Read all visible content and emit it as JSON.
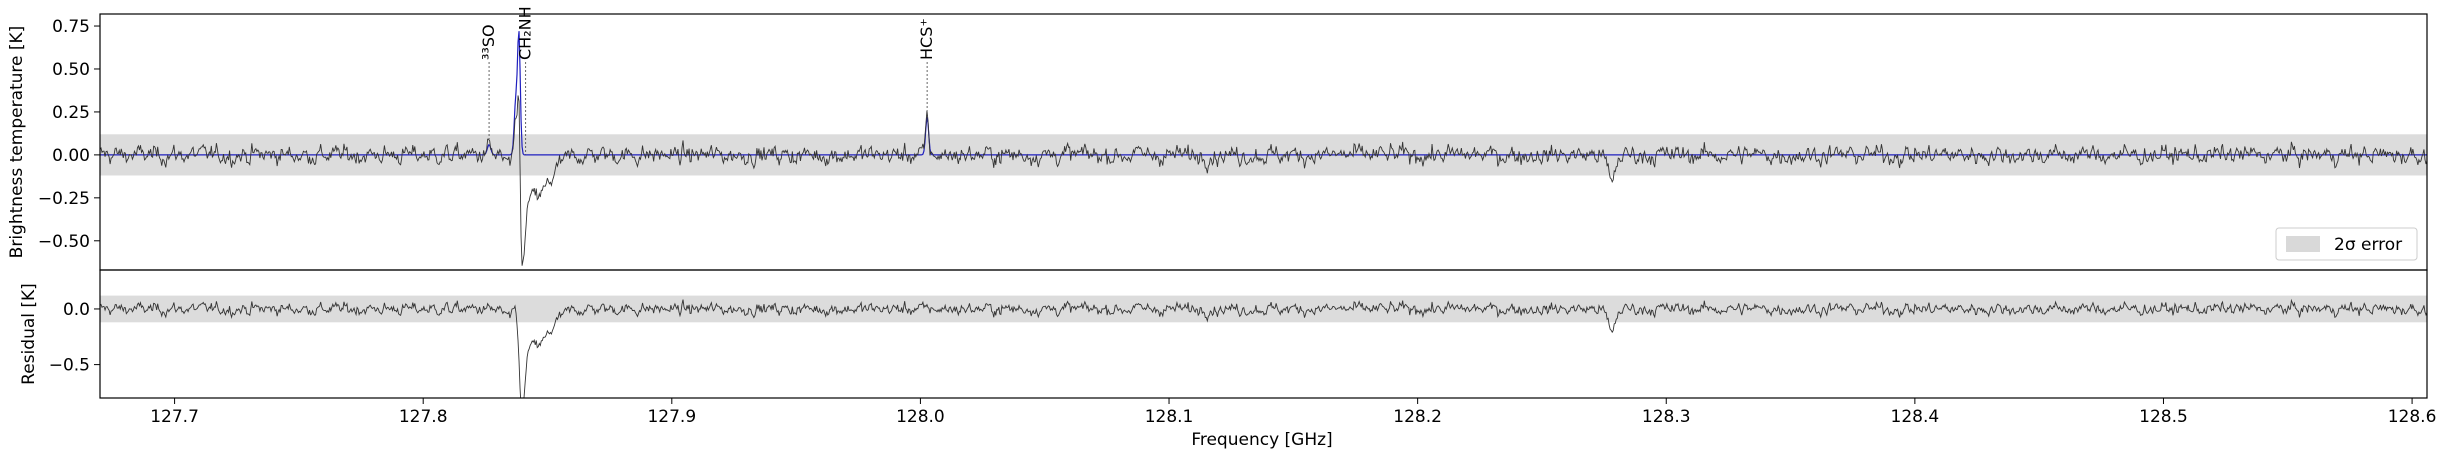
{
  "chart_data": [
    {
      "type": "line",
      "panel": "top",
      "ylabel": "Brightness temperature [K]",
      "xlim": [
        127.67,
        128.606
      ],
      "ylim": [
        -0.67,
        0.82
      ],
      "yticks": [
        -0.5,
        -0.25,
        0.0,
        0.25,
        0.5,
        0.75
      ],
      "ytick_labels": [
        "−0.50",
        "−0.25",
        "0.00",
        "0.25",
        "0.50",
        "0.75"
      ],
      "error_band": [
        -0.12,
        0.12
      ],
      "grid": false,
      "legend": {
        "position": "lower-right",
        "entries": [
          {
            "label": "2σ error",
            "color": "#d9d9d9"
          }
        ]
      },
      "series": [
        {
          "role": "observed",
          "color": "#333333"
        },
        {
          "role": "model",
          "color": "#1f1fbf"
        }
      ],
      "features": [
        {
          "freq": 127.8398,
          "min": -0.56
        },
        {
          "freq": 127.8385,
          "max": 0.73
        },
        {
          "freq": 128.0027,
          "max": 0.22
        },
        {
          "freq": 128.278,
          "min": -0.22
        }
      ],
      "line_labels": [
        {
          "x": 127.8265,
          "label": "³³SO"
        },
        {
          "x": 127.8412,
          "label": "CH₂NH"
        },
        {
          "x": 128.0027,
          "label": "HCS⁺"
        }
      ]
    },
    {
      "type": "line",
      "panel": "bottom",
      "ylabel": "Residual [K]",
      "xlabel": "Frequency [GHz]",
      "xlim": [
        127.67,
        128.606
      ],
      "ylim": [
        -0.8,
        0.35
      ],
      "yticks": [
        -0.5,
        0.0
      ],
      "ytick_labels": [
        "−0.5",
        "0.0"
      ],
      "xticks": [
        127.7,
        127.8,
        127.9,
        128.0,
        128.1,
        128.2,
        128.3,
        128.4,
        128.5,
        128.6
      ],
      "xtick_labels": [
        "127.7",
        "127.8",
        "127.9",
        "128.0",
        "128.1",
        "128.2",
        "128.3",
        "128.4",
        "128.5",
        "128.6"
      ],
      "error_band": [
        -0.12,
        0.12
      ],
      "grid": false,
      "series": [
        {
          "role": "residual",
          "color": "#333333"
        }
      ],
      "features": [
        {
          "freq": 127.8385,
          "max": 0.2
        },
        {
          "freq": 127.8398,
          "min": -0.72
        }
      ]
    }
  ]
}
